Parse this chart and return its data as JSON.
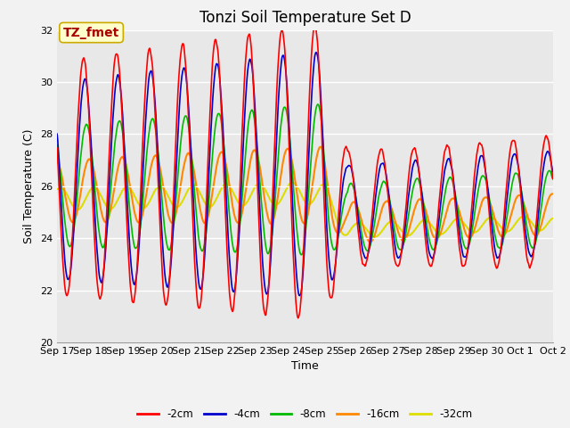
{
  "title": "Tonzi Soil Temperature Set D",
  "xlabel": "Time",
  "ylabel": "Soil Temperature (C)",
  "ylim": [
    20,
    32
  ],
  "xtick_labels": [
    "Sep 17",
    "Sep 18",
    "Sep 19",
    "Sep 20",
    "Sep 21",
    "Sep 22",
    "Sep 23",
    "Sep 24",
    "Sep 25",
    "Sep 26",
    "Sep 27",
    "Sep 28",
    "Sep 29",
    "Sep 30",
    "Oct 1",
    "Oct 2"
  ],
  "ytick_values": [
    20,
    22,
    24,
    26,
    28,
    30,
    32
  ],
  "legend_entries": [
    "-2cm",
    "-4cm",
    "-8cm",
    "-16cm",
    "-32cm"
  ],
  "line_colors": [
    "#FF0000",
    "#0000CC",
    "#00BB00",
    "#FF8800",
    "#DDDD00"
  ],
  "annotation_text": "TZ_fmet",
  "annotation_color": "#AA0000",
  "annotation_bg": "#FFFFCC",
  "annotation_border": "#CCAA00",
  "bg_color": "#E8E8E8",
  "grid_color": "#FFFFFF",
  "title_fontsize": 12,
  "label_fontsize": 9,
  "tick_fontsize": 8
}
